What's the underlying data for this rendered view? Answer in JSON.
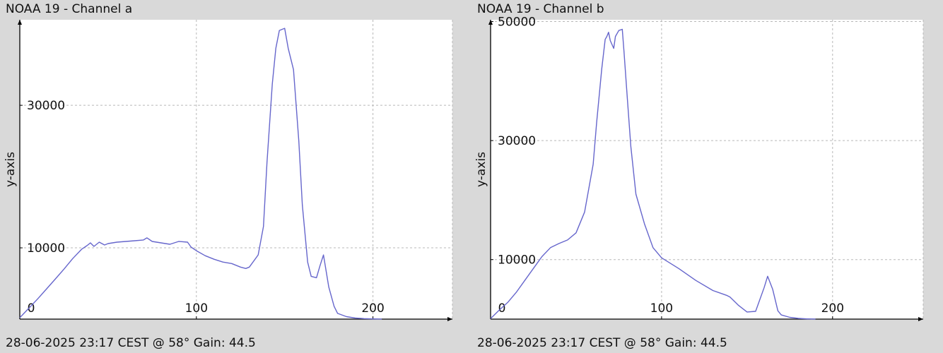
{
  "chart_data": [
    {
      "type": "line",
      "title": "NOAA 19 - Channel a",
      "footer": "28-06-2025 23:17 CEST @ 58° Gain: 44.5",
      "xlabel": "",
      "ylabel": "y-axis",
      "xlim": [
        0,
        245
      ],
      "ylim": [
        0,
        42000
      ],
      "xticks": [
        0,
        100,
        200
      ],
      "xtick_labels": [
        "0",
        "100",
        "200"
      ],
      "yticks": [
        10000,
        30000
      ],
      "ytick_labels": [
        "10000",
        "30000"
      ],
      "grid": true,
      "line_color": "#6666cc",
      "series": [
        {
          "x": [
            0,
            5,
            10,
            15,
            20,
            25,
            30,
            35,
            38,
            40,
            42,
            45,
            48,
            50,
            55,
            60,
            65,
            70,
            72,
            75,
            80,
            85,
            90,
            95,
            97,
            100,
            105,
            110,
            115,
            120,
            125,
            128,
            130,
            135,
            138,
            140,
            143,
            145,
            147,
            150,
            152,
            155,
            158,
            160,
            163,
            165,
            168,
            170,
            172,
            175,
            178,
            180,
            185,
            190,
            195,
            200,
            205
          ],
          "y": [
            200,
            1500,
            2800,
            4200,
            5600,
            7000,
            8500,
            9800,
            10300,
            10700,
            10200,
            10800,
            10400,
            10600,
            10800,
            10900,
            11000,
            11100,
            11400,
            10900,
            10700,
            10500,
            10900,
            10800,
            10100,
            9600,
            8900,
            8400,
            8000,
            7800,
            7300,
            7100,
            7300,
            9000,
            13000,
            22000,
            33000,
            38000,
            40500,
            40800,
            38000,
            35000,
            25000,
            16000,
            8000,
            6000,
            5800,
            7500,
            9000,
            4500,
            1800,
            800,
            350,
            150,
            70,
            30,
            10
          ]
        }
      ]
    },
    {
      "type": "line",
      "title": "NOAA 19 - Channel b",
      "footer": "28-06-2025 23:17 CEST @ 58° Gain: 44.5",
      "xlabel": "",
      "ylabel": "y-axis",
      "xlim": [
        0,
        253
      ],
      "ylim": [
        0,
        50300
      ],
      "xticks": [
        0,
        100,
        200
      ],
      "xtick_labels": [
        "0",
        "100",
        "200"
      ],
      "yticks": [
        10000,
        30000,
        50000
      ],
      "ytick_labels": [
        "10000",
        "30000",
        "50000"
      ],
      "grid": true,
      "line_color": "#6666cc",
      "series": [
        {
          "x": [
            0,
            5,
            10,
            15,
            20,
            25,
            30,
            35,
            40,
            45,
            50,
            55,
            60,
            62,
            65,
            67,
            68,
            69,
            70,
            72,
            73,
            75,
            77,
            78,
            80,
            82,
            85,
            90,
            95,
            100,
            110,
            120,
            130,
            138,
            140,
            145,
            150,
            155,
            160,
            162,
            165,
            168,
            170,
            175,
            180,
            185,
            190
          ],
          "y": [
            100,
            1500,
            2800,
            4500,
            6500,
            8500,
            10500,
            12000,
            12700,
            13300,
            14500,
            18000,
            26000,
            33000,
            42000,
            47000,
            47500,
            48200,
            46800,
            45500,
            47500,
            48500,
            48700,
            45000,
            37000,
            29000,
            21000,
            16000,
            12000,
            10300,
            8500,
            6500,
            4800,
            4000,
            3700,
            2300,
            1200,
            1300,
            5300,
            7200,
            5000,
            1400,
            700,
            300,
            120,
            40,
            10
          ]
        }
      ]
    }
  ]
}
